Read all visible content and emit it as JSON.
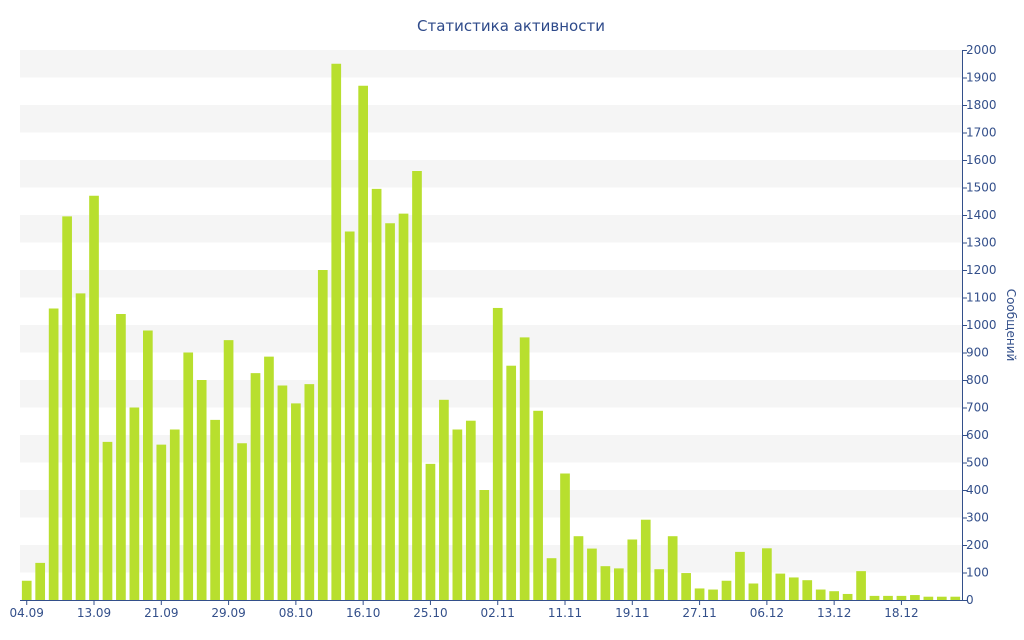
{
  "colors": {
    "bar": "#b8df2e",
    "grid_band": "#f5f5f5",
    "axis": "#334f8a",
    "text": "#334f8a"
  },
  "chart_data": {
    "type": "bar",
    "title": "Статистика активности",
    "xlabel": "",
    "ylabel": "Сообщений",
    "y_axis_side": "right",
    "ylim": [
      0,
      2000
    ],
    "y_ticks": [
      0,
      100,
      200,
      300,
      400,
      500,
      600,
      700,
      800,
      900,
      1000,
      1100,
      1200,
      1300,
      1400,
      1500,
      1600,
      1700,
      1800,
      1900,
      2000
    ],
    "x_tick_labels": [
      {
        "bar_index": 0,
        "label": "04.09"
      },
      {
        "bar_index": 5,
        "label": "13.09"
      },
      {
        "bar_index": 10,
        "label": "21.09"
      },
      {
        "bar_index": 15,
        "label": "29.09"
      },
      {
        "bar_index": 20,
        "label": "08.10"
      },
      {
        "bar_index": 25,
        "label": "16.10"
      },
      {
        "bar_index": 30,
        "label": "25.10"
      },
      {
        "bar_index": 35,
        "label": "02.11"
      },
      {
        "bar_index": 40,
        "label": "11.11"
      },
      {
        "bar_index": 45,
        "label": "19.11"
      },
      {
        "bar_index": 50,
        "label": "27.11"
      },
      {
        "bar_index": 55,
        "label": "06.12"
      },
      {
        "bar_index": 60,
        "label": "13.12"
      },
      {
        "bar_index": 65,
        "label": "18.12"
      }
    ],
    "grid": true,
    "legend": "none",
    "values": [
      70,
      135,
      1060,
      1395,
      1115,
      1470,
      575,
      1040,
      700,
      980,
      565,
      620,
      900,
      800,
      655,
      945,
      570,
      825,
      885,
      780,
      715,
      785,
      1200,
      1950,
      1340,
      1870,
      1495,
      1370,
      1405,
      1560,
      495,
      728,
      620,
      652,
      400,
      1062,
      852,
      955,
      688,
      152,
      460,
      232,
      187,
      123,
      115,
      220,
      292,
      112,
      232,
      98,
      42,
      38,
      70,
      175,
      60,
      188,
      96,
      82,
      72,
      38,
      32,
      22,
      105,
      15,
      15,
      15,
      18,
      12,
      12,
      12
    ]
  }
}
